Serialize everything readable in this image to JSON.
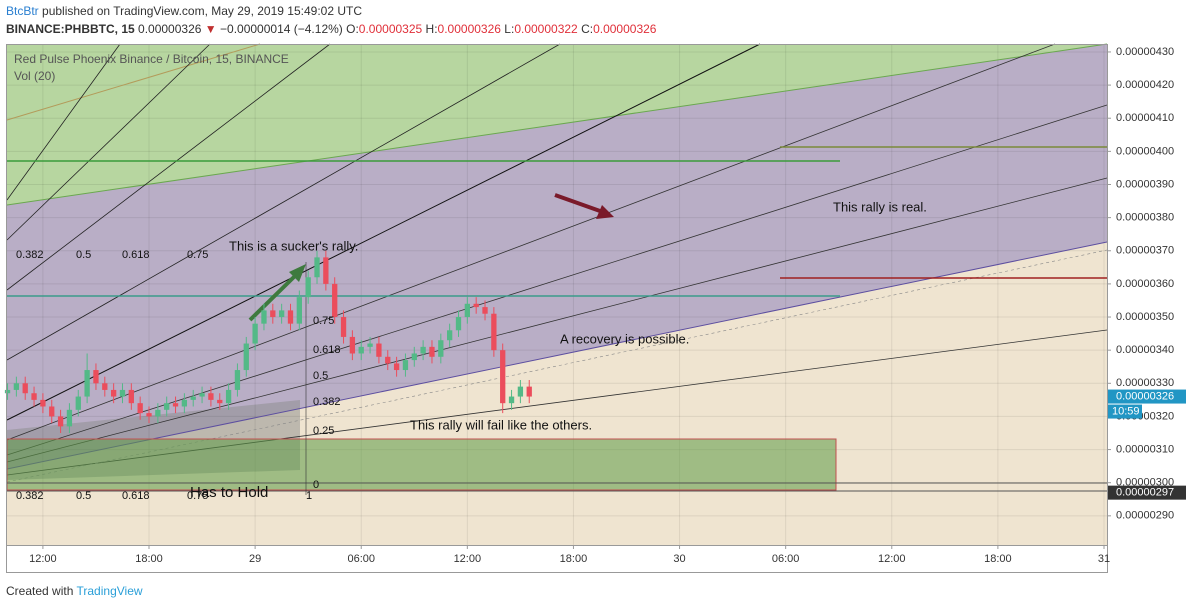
{
  "header": {
    "author": "BtcBtr",
    "published": "published on TradingView.com, May 29, 2019 15:49:02 UTC",
    "symbol": "BINANCE:PHBBTC, 15",
    "last": "0.00000326",
    "change": "−0.00000014 (−4.12%)",
    "ohlc": [
      {
        "label": "O:",
        "value": "0.00000325"
      },
      {
        "label": "H:",
        "value": "0.00000326"
      },
      {
        "label": "L:",
        "value": "0.00000322"
      },
      {
        "label": "C:",
        "value": "0.00000326"
      }
    ]
  },
  "footer": {
    "created": "Created with",
    "brand": "TradingView"
  },
  "annotations": [
    "This is a sucker's rally.",
    "This rally is real.",
    "A recovery is possible.",
    "This rally will fail like the others.",
    "Has to Hold"
  ],
  "fib_labels": [
    "0.382",
    "0.5",
    "0.618",
    "0.75",
    "0.75",
    "0.618",
    "0.5",
    "0.382",
    "0.25",
    "0",
    "1",
    "0.382",
    "0.5",
    "0.618",
    "0.75"
  ],
  "chart_data": {
    "type": "candlestick",
    "title": "Red Pulse Phoenix Binance / Bitcoin, 15, BINANCE",
    "volume_label": "Vol (20)",
    "up_color": "#53b987",
    "down_color": "#eb4d5c",
    "grid": true,
    "xlim": [
      -2.03,
      60.17
    ],
    "xticks": [
      {
        "value": 0,
        "label": "12:00"
      },
      {
        "value": 6,
        "label": "18:00"
      },
      {
        "value": 12,
        "label": "29"
      },
      {
        "value": 18,
        "label": "06:00"
      },
      {
        "value": 24,
        "label": "12:00"
      },
      {
        "value": 30,
        "label": "18:00"
      },
      {
        "value": 36,
        "label": "30"
      },
      {
        "value": 42,
        "label": "06:00"
      },
      {
        "value": 48,
        "label": "12:00"
      },
      {
        "value": 54,
        "label": "18:00"
      },
      {
        "value": 60,
        "label": "31"
      }
    ],
    "ylim": [
      2.812e-06,
      4.324e-06
    ],
    "yticks": [
      {
        "value": 2.9e-06,
        "label": "0.00000290"
      },
      {
        "value": 3e-06,
        "label": "0.00000300"
      },
      {
        "value": 3.1e-06,
        "label": "0.00000310"
      },
      {
        "value": 3.2e-06,
        "label": "0.00000320"
      },
      {
        "value": 3.3e-06,
        "label": "0.00000330"
      },
      {
        "value": 3.4e-06,
        "label": "0.00000340"
      },
      {
        "value": 3.5e-06,
        "label": "0.00000350"
      },
      {
        "value": 3.6e-06,
        "label": "0.00000360"
      },
      {
        "value": 3.7e-06,
        "label": "0.00000370"
      },
      {
        "value": 3.8e-06,
        "label": "0.00000380"
      },
      {
        "value": 3.9e-06,
        "label": "0.00000390"
      },
      {
        "value": 4e-06,
        "label": "0.00000400"
      },
      {
        "value": 4.1e-06,
        "label": "0.00000410"
      },
      {
        "value": 4.2e-06,
        "label": "0.00000420"
      },
      {
        "value": 4.3e-06,
        "label": "0.00000430"
      }
    ],
    "price_tag": {
      "value": 3.26e-06,
      "label": "0.00000326",
      "color": "#2196c4"
    },
    "countdown": "10:59",
    "level_tag": {
      "value": 2.97e-06,
      "label": "0.00000297",
      "color": "#333333"
    },
    "x": [
      -2,
      -1.5,
      -1,
      -0.5,
      0,
      0.5,
      1,
      1.5,
      2,
      2.5,
      3,
      3.5,
      4,
      4.5,
      5,
      5.5,
      6,
      6.5,
      7,
      7.5,
      8,
      8.5,
      9,
      9.5,
      10,
      10.5,
      11,
      11.5,
      12,
      12.5,
      13,
      13.5,
      14,
      14.5,
      15,
      15.5,
      16,
      16.5,
      17,
      17.5,
      18,
      18.5,
      19,
      19.5,
      20,
      20.5,
      21,
      21.5,
      22,
      22.5,
      23,
      23.5,
      24,
      24.5,
      25,
      25.5,
      26,
      26.5,
      27,
      27.5
    ],
    "open": [
      3.27e-06,
      3.28e-06,
      3.3e-06,
      3.27e-06,
      3.25e-06,
      3.23e-06,
      3.2e-06,
      3.17e-06,
      3.22e-06,
      3.26e-06,
      3.34e-06,
      3.3e-06,
      3.28e-06,
      3.26e-06,
      3.28e-06,
      3.24e-06,
      3.21e-06,
      3.2e-06,
      3.22e-06,
      3.24e-06,
      3.23e-06,
      3.25e-06,
      3.26e-06,
      3.27e-06,
      3.25e-06,
      3.24e-06,
      3.28e-06,
      3.34e-06,
      3.42e-06,
      3.48e-06,
      3.52e-06,
      3.5e-06,
      3.52e-06,
      3.48e-06,
      3.56e-06,
      3.62e-06,
      3.68e-06,
      3.6e-06,
      3.5e-06,
      3.44e-06,
      3.39e-06,
      3.41e-06,
      3.42e-06,
      3.38e-06,
      3.36e-06,
      3.34e-06,
      3.37e-06,
      3.39e-06,
      3.41e-06,
      3.38e-06,
      3.43e-06,
      3.46e-06,
      3.5e-06,
      3.54e-06,
      3.53e-06,
      3.51e-06,
      3.4e-06,
      3.24e-06,
      3.26e-06,
      3.29e-06
    ],
    "high": [
      3.3e-06,
      3.32e-06,
      3.32e-06,
      3.29e-06,
      3.27e-06,
      3.25e-06,
      3.22e-06,
      3.24e-06,
      3.28e-06,
      3.39e-06,
      3.36e-06,
      3.32e-06,
      3.3e-06,
      3.3e-06,
      3.3e-06,
      3.26e-06,
      3.23e-06,
      3.24e-06,
      3.26e-06,
      3.26e-06,
      3.27e-06,
      3.28e-06,
      3.29e-06,
      3.29e-06,
      3.27e-06,
      3.3e-06,
      3.36e-06,
      3.44e-06,
      3.5e-06,
      3.54e-06,
      3.54e-06,
      3.54e-06,
      3.54e-06,
      3.58e-06,
      3.64e-06,
      3.7e-06,
      3.7e-06,
      3.62e-06,
      3.52e-06,
      3.46e-06,
      3.43e-06,
      3.44e-06,
      3.44e-06,
      3.4e-06,
      3.38e-06,
      3.39e-06,
      3.41e-06,
      3.43e-06,
      3.43e-06,
      3.45e-06,
      3.48e-06,
      3.52e-06,
      3.56e-06,
      3.56e-06,
      3.55e-06,
      3.53e-06,
      3.42e-06,
      3.28e-06,
      3.31e-06,
      3.31e-06
    ],
    "low": [
      3.25e-06,
      3.26e-06,
      3.25e-06,
      3.23e-06,
      3.21e-06,
      3.18e-06,
      3.15e-06,
      3.15e-06,
      3.2e-06,
      3.24e-06,
      3.28e-06,
      3.26e-06,
      3.24e-06,
      3.24e-06,
      3.22e-06,
      3.19e-06,
      3.18e-06,
      3.18e-06,
      3.2e-06,
      3.21e-06,
      3.21e-06,
      3.23e-06,
      3.24e-06,
      3.23e-06,
      3.22e-06,
      3.22e-06,
      3.26e-06,
      3.32e-06,
      3.4e-06,
      3.46e-06,
      3.48e-06,
      3.48e-06,
      3.46e-06,
      3.46e-06,
      3.54e-06,
      3.6e-06,
      3.58e-06,
      3.48e-06,
      3.42e-06,
      3.37e-06,
      3.37e-06,
      3.39e-06,
      3.36e-06,
      3.34e-06,
      3.32e-06,
      3.32e-06,
      3.35e-06,
      3.37e-06,
      3.36e-06,
      3.36e-06,
      3.41e-06,
      3.44e-06,
      3.48e-06,
      3.51e-06,
      3.49e-06,
      3.38e-06,
      3.21e-06,
      3.22e-06,
      3.24e-06,
      3.24e-06
    ],
    "close": [
      3.28e-06,
      3.3e-06,
      3.27e-06,
      3.25e-06,
      3.23e-06,
      3.2e-06,
      3.17e-06,
      3.22e-06,
      3.26e-06,
      3.34e-06,
      3.3e-06,
      3.28e-06,
      3.26e-06,
      3.28e-06,
      3.24e-06,
      3.21e-06,
      3.2e-06,
      3.22e-06,
      3.24e-06,
      3.23e-06,
      3.25e-06,
      3.26e-06,
      3.27e-06,
      3.25e-06,
      3.24e-06,
      3.28e-06,
      3.34e-06,
      3.42e-06,
      3.48e-06,
      3.52e-06,
      3.5e-06,
      3.52e-06,
      3.48e-06,
      3.56e-06,
      3.62e-06,
      3.68e-06,
      3.6e-06,
      3.5e-06,
      3.44e-06,
      3.39e-06,
      3.41e-06,
      3.42e-06,
      3.38e-06,
      3.36e-06,
      3.34e-06,
      3.37e-06,
      3.39e-06,
      3.41e-06,
      3.38e-06,
      3.43e-06,
      3.46e-06,
      3.5e-06,
      3.54e-06,
      3.53e-06,
      3.51e-06,
      3.4e-06,
      3.24e-06,
      3.26e-06,
      3.29e-06,
      3.26e-06
    ]
  }
}
